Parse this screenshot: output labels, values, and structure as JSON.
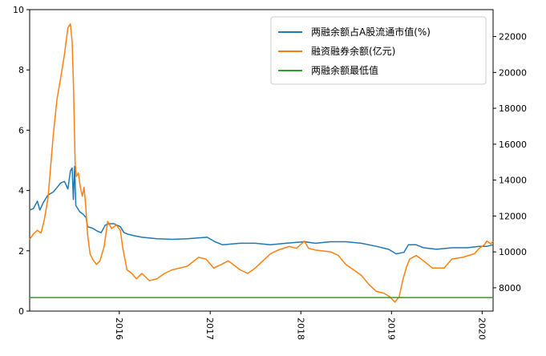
{
  "chart_data": {
    "type": "line",
    "legend_position": "top-right",
    "grid": false,
    "x_axis": {
      "type": "date",
      "range": [
        "2015-01-05",
        "2020-02-14"
      ],
      "ticks": [
        "2016",
        "2017",
        "2018",
        "2019",
        "2020"
      ],
      "tick_dates": [
        "2016-01-01",
        "2017-01-01",
        "2018-01-01",
        "2019-01-01",
        "2020-01-01"
      ],
      "tick_label_rotation": "vertical"
    },
    "y_left": {
      "range": [
        0,
        10
      ],
      "ticks": [
        "0",
        "2",
        "4",
        "6",
        "8",
        "10"
      ],
      "tick_values": [
        0,
        2,
        4,
        6,
        8,
        10
      ]
    },
    "y_right": {
      "range": [
        6700,
        23500
      ],
      "ticks": [
        "8000",
        "10000",
        "12000",
        "14000",
        "16000",
        "18000",
        "20000",
        "22000"
      ],
      "tick_values": [
        8000,
        10000,
        12000,
        14000,
        16000,
        18000,
        20000,
        22000
      ]
    },
    "series": [
      {
        "name": "两融余额占A股流通市值(%)",
        "axis": "left",
        "color": "#1f77b4",
        "points": [
          [
            "2015-01-05",
            3.35
          ],
          [
            "2015-01-20",
            3.4
          ],
          [
            "2015-02-05",
            3.65
          ],
          [
            "2015-02-15",
            3.35
          ],
          [
            "2015-03-01",
            3.6
          ],
          [
            "2015-03-20",
            3.85
          ],
          [
            "2015-04-10",
            3.95
          ],
          [
            "2015-04-25",
            4.1
          ],
          [
            "2015-05-10",
            4.25
          ],
          [
            "2015-05-25",
            4.3
          ],
          [
            "2015-06-08",
            4.05
          ],
          [
            "2015-06-18",
            4.65
          ],
          [
            "2015-06-25",
            4.75
          ],
          [
            "2015-06-30",
            3.7
          ],
          [
            "2015-07-05",
            4.8
          ],
          [
            "2015-07-10",
            3.5
          ],
          [
            "2015-07-25",
            3.3
          ],
          [
            "2015-08-10",
            3.2
          ],
          [
            "2015-08-20",
            3.1
          ],
          [
            "2015-08-26",
            2.8
          ],
          [
            "2015-09-15",
            2.75
          ],
          [
            "2015-10-05",
            2.65
          ],
          [
            "2015-10-20",
            2.6
          ],
          [
            "2015-11-05",
            2.85
          ],
          [
            "2015-11-20",
            2.9
          ],
          [
            "2015-12-10",
            2.9
          ],
          [
            "2016-01-05",
            2.8
          ],
          [
            "2016-01-20",
            2.6
          ],
          [
            "2016-02-05",
            2.55
          ],
          [
            "2016-03-01",
            2.5
          ],
          [
            "2016-04-01",
            2.45
          ],
          [
            "2016-06-01",
            2.4
          ],
          [
            "2016-08-01",
            2.38
          ],
          [
            "2016-10-01",
            2.4
          ],
          [
            "2016-12-20",
            2.45
          ],
          [
            "2017-01-20",
            2.3
          ],
          [
            "2017-02-20",
            2.2
          ],
          [
            "2017-05-01",
            2.25
          ],
          [
            "2017-07-01",
            2.25
          ],
          [
            "2017-09-01",
            2.2
          ],
          [
            "2017-11-01",
            2.25
          ],
          [
            "2018-01-15",
            2.3
          ],
          [
            "2018-03-01",
            2.25
          ],
          [
            "2018-05-01",
            2.3
          ],
          [
            "2018-07-01",
            2.3
          ],
          [
            "2018-09-01",
            2.25
          ],
          [
            "2018-11-01",
            2.15
          ],
          [
            "2018-12-20",
            2.05
          ],
          [
            "2019-01-20",
            1.9
          ],
          [
            "2019-02-20",
            1.95
          ],
          [
            "2019-03-10",
            2.2
          ],
          [
            "2019-04-10",
            2.2
          ],
          [
            "2019-05-10",
            2.1
          ],
          [
            "2019-07-01",
            2.05
          ],
          [
            "2019-09-01",
            2.1
          ],
          [
            "2019-11-01",
            2.1
          ],
          [
            "2019-12-20",
            2.15
          ],
          [
            "2020-01-20",
            2.15
          ],
          [
            "2020-02-14",
            2.2
          ]
        ]
      },
      {
        "name": "融资融券余额(亿元)",
        "axis": "right",
        "color": "#ff7f0e",
        "points": [
          [
            "2015-01-05",
            10700
          ],
          [
            "2015-01-20",
            11000
          ],
          [
            "2015-02-05",
            11200
          ],
          [
            "2015-02-20",
            11050
          ],
          [
            "2015-03-05",
            11800
          ],
          [
            "2015-03-20",
            13000
          ],
          [
            "2015-04-10",
            16500
          ],
          [
            "2015-04-25",
            18500
          ],
          [
            "2015-05-10",
            19700
          ],
          [
            "2015-05-25",
            21000
          ],
          [
            "2015-06-08",
            22500
          ],
          [
            "2015-06-18",
            22700
          ],
          [
            "2015-06-25",
            21700
          ],
          [
            "2015-07-01",
            19000
          ],
          [
            "2015-07-07",
            15000
          ],
          [
            "2015-07-12",
            14200
          ],
          [
            "2015-07-20",
            14400
          ],
          [
            "2015-07-28",
            13600
          ],
          [
            "2015-08-05",
            13100
          ],
          [
            "2015-08-12",
            13600
          ],
          [
            "2015-08-18",
            12700
          ],
          [
            "2015-08-26",
            11000
          ],
          [
            "2015-09-05",
            9900
          ],
          [
            "2015-09-15",
            9600
          ],
          [
            "2015-10-01",
            9300
          ],
          [
            "2015-10-15",
            9500
          ],
          [
            "2015-11-01",
            10300
          ],
          [
            "2015-11-15",
            11700
          ],
          [
            "2015-12-01",
            11300
          ],
          [
            "2015-12-20",
            11500
          ],
          [
            "2016-01-05",
            11200
          ],
          [
            "2016-01-15",
            10200
          ],
          [
            "2016-02-01",
            9000
          ],
          [
            "2016-02-20",
            8800
          ],
          [
            "2016-03-10",
            8500
          ],
          [
            "2016-04-01",
            8800
          ],
          [
            "2016-05-01",
            8400
          ],
          [
            "2016-06-01",
            8500
          ],
          [
            "2016-07-01",
            8800
          ],
          [
            "2016-08-01",
            9000
          ],
          [
            "2016-09-01",
            9100
          ],
          [
            "2016-10-01",
            9200
          ],
          [
            "2016-11-15",
            9700
          ],
          [
            "2016-12-15",
            9600
          ],
          [
            "2017-01-15",
            9100
          ],
          [
            "2017-02-15",
            9300
          ],
          [
            "2017-03-15",
            9500
          ],
          [
            "2017-05-01",
            9000
          ],
          [
            "2017-06-01",
            8800
          ],
          [
            "2017-07-01",
            9100
          ],
          [
            "2017-08-01",
            9500
          ],
          [
            "2017-09-01",
            9900
          ],
          [
            "2017-10-01",
            10100
          ],
          [
            "2017-11-15",
            10300
          ],
          [
            "2017-12-15",
            10200
          ],
          [
            "2018-01-15",
            10600
          ],
          [
            "2018-02-01",
            10200
          ],
          [
            "2018-03-01",
            10100
          ],
          [
            "2018-04-01",
            10050
          ],
          [
            "2018-05-01",
            10000
          ],
          [
            "2018-06-01",
            9800
          ],
          [
            "2018-07-01",
            9300
          ],
          [
            "2018-08-01",
            9000
          ],
          [
            "2018-09-01",
            8700
          ],
          [
            "2018-10-01",
            8200
          ],
          [
            "2018-11-01",
            7800
          ],
          [
            "2018-12-01",
            7700
          ],
          [
            "2018-12-25",
            7500
          ],
          [
            "2019-01-15",
            7200
          ],
          [
            "2019-02-01",
            7500
          ],
          [
            "2019-02-15",
            8400
          ],
          [
            "2019-03-01",
            9100
          ],
          [
            "2019-03-15",
            9600
          ],
          [
            "2019-04-10",
            9800
          ],
          [
            "2019-05-10",
            9500
          ],
          [
            "2019-06-15",
            9100
          ],
          [
            "2019-08-01",
            9100
          ],
          [
            "2019-09-01",
            9600
          ],
          [
            "2019-10-15",
            9700
          ],
          [
            "2019-12-01",
            9900
          ],
          [
            "2019-12-20",
            10200
          ],
          [
            "2020-01-10",
            10400
          ],
          [
            "2020-01-20",
            10600
          ],
          [
            "2020-02-05",
            10450
          ],
          [
            "2020-02-14",
            10600
          ]
        ]
      },
      {
        "name": "两融余额最低值",
        "axis": "left",
        "color": "#2ca02c",
        "points": [
          [
            "2015-01-05",
            0.45
          ],
          [
            "2020-02-14",
            0.45
          ]
        ]
      }
    ]
  }
}
